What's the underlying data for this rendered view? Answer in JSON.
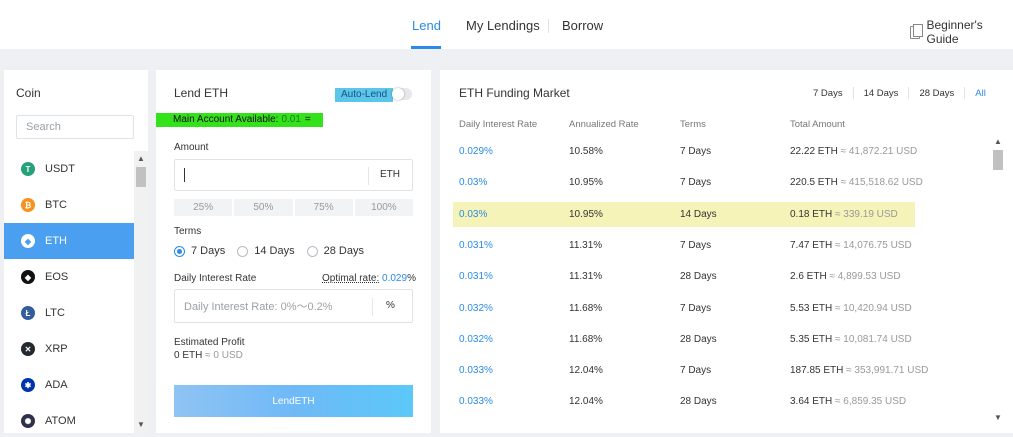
{
  "nav": {
    "tabs": [
      {
        "label": "Lend"
      },
      {
        "label": "My Lendings"
      },
      {
        "label": "Borrow"
      }
    ],
    "guide_label": "Beginner's Guide"
  },
  "coins": {
    "title": "Coin",
    "search_placeholder": "Search",
    "items": [
      {
        "symbol": "USDT",
        "glyph": "T",
        "color": "#26a17b"
      },
      {
        "symbol": "BTC",
        "glyph": "₿",
        "color": "#f7931a"
      },
      {
        "symbol": "ETH",
        "glyph": "◆",
        "color": "#4a9ff0"
      },
      {
        "symbol": "EOS",
        "glyph": "◆",
        "color": "#111111"
      },
      {
        "symbol": "LTC",
        "glyph": "Ł",
        "color": "#345d9d"
      },
      {
        "symbol": "XRP",
        "glyph": "✕",
        "color": "#23292f"
      },
      {
        "symbol": "ADA",
        "glyph": "✱",
        "color": "#0033ad"
      },
      {
        "symbol": "ATOM",
        "glyph": "✺",
        "color": "#2e3148"
      }
    ],
    "active": "ETH"
  },
  "lend": {
    "title": "Lend ETH",
    "auto_lend_label": "Auto-Lend",
    "auto_lend_on": false,
    "available_label": "Main Account Available:",
    "available_value": "0.01",
    "available_icon": "=",
    "amount_label": "Amount",
    "amount_value": "",
    "amount_unit": "ETH",
    "percents": [
      "25%",
      "50%",
      "75%",
      "100%"
    ],
    "terms_label": "Terms",
    "terms": [
      {
        "label": "7 Days",
        "selected": true
      },
      {
        "label": "14 Days",
        "selected": false
      },
      {
        "label": "28 Days",
        "selected": false
      }
    ],
    "rate_label": "Daily Interest Rate",
    "optimal_label": "Optimal rate:",
    "optimal_value": "0.029",
    "optimal_unit": "%",
    "rate_placeholder": "Daily Interest Rate: 0%～0.2%",
    "rate_unit": "%",
    "estimated_label": "Estimated Profit",
    "estimated_value": "0 ETH",
    "estimated_usd": "≈ 0 USD",
    "lend_button": "LendETH"
  },
  "market": {
    "title": "ETH Funding Market",
    "filters": [
      "7 Days",
      "14 Days",
      "28 Days",
      "All"
    ],
    "active_filter": "All",
    "columns": [
      "Daily Interest Rate",
      "Annualized Rate",
      "Terms",
      "Total Amount"
    ],
    "rows": [
      {
        "daily": "0.029%",
        "annual": "10.58%",
        "terms": "7 Days",
        "amount": "22.22 ETH",
        "usd": "≈ 41,872.21 USD",
        "highlight": false
      },
      {
        "daily": "0.03%",
        "annual": "10.95%",
        "terms": "7 Days",
        "amount": "220.5 ETH",
        "usd": "≈ 415,518.62 USD",
        "highlight": false
      },
      {
        "daily": "0.03%",
        "annual": "10.95%",
        "terms": "14 Days",
        "amount": "0.18 ETH",
        "usd": "≈ 339.19 USD",
        "highlight": true
      },
      {
        "daily": "0.031%",
        "annual": "11.31%",
        "terms": "7 Days",
        "amount": "7.47 ETH",
        "usd": "≈ 14,076.75 USD",
        "highlight": false
      },
      {
        "daily": "0.031%",
        "annual": "11.31%",
        "terms": "28 Days",
        "amount": "2.6 ETH",
        "usd": "≈ 4,899.53 USD",
        "highlight": false
      },
      {
        "daily": "0.032%",
        "annual": "11.68%",
        "terms": "7 Days",
        "amount": "5.53 ETH",
        "usd": "≈ 10,420.94 USD",
        "highlight": false
      },
      {
        "daily": "0.032%",
        "annual": "11.68%",
        "terms": "28 Days",
        "amount": "5.35 ETH",
        "usd": "≈ 10,081.74 USD",
        "highlight": false
      },
      {
        "daily": "0.033%",
        "annual": "12.04%",
        "terms": "7 Days",
        "amount": "187.85 ETH",
        "usd": "≈ 353,991.71 USD",
        "highlight": false
      },
      {
        "daily": "0.033%",
        "annual": "12.04%",
        "terms": "28 Days",
        "amount": "3.64 ETH",
        "usd": "≈ 6,859.35 USD",
        "highlight": false
      }
    ]
  },
  "colors": {
    "accent": "#2a8be6",
    "active_coin_bg": "#4a9ff0",
    "highlight_row": "#f6f3b9",
    "available_bg": "#33e21a",
    "auto_lend_bg": "#5bc6e8"
  }
}
